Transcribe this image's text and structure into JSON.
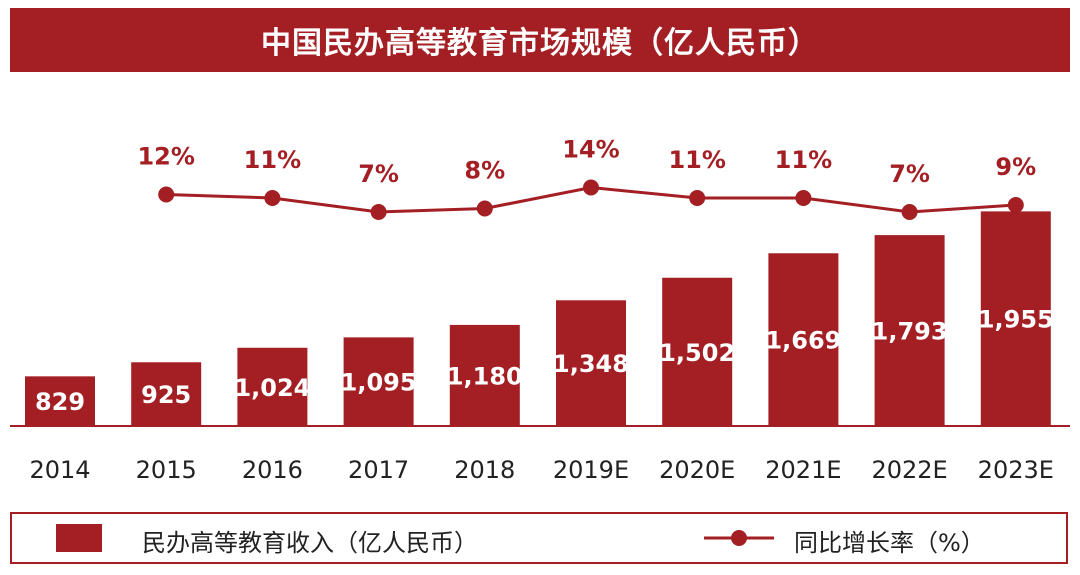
{
  "title": "中国民办高等教育市场规模（亿人民币）",
  "colors": {
    "accent": "#a31f24",
    "bar_label": "#ffffff",
    "axis_text": "#222222"
  },
  "legend": {
    "bar_label": "民办高等教育收入（亿人民币）",
    "line_label": "同比增长率（%）"
  },
  "chart_data": {
    "type": "bar",
    "categories": [
      "2014",
      "2015",
      "2016",
      "2017",
      "2018",
      "2019E",
      "2020E",
      "2021E",
      "2022E",
      "2023E"
    ],
    "series": [
      {
        "name": "民办高等教育收入（亿人民币）",
        "type": "bar",
        "values": [
          829,
          925,
          1024,
          1095,
          1180,
          1348,
          1502,
          1669,
          1793,
          1955
        ],
        "labels": [
          "829",
          "925",
          "1,024",
          "1,095",
          "1,180",
          "1,348",
          "1,502",
          "1,669",
          "1,793",
          "1,955"
        ]
      },
      {
        "name": "同比增长率（%）",
        "type": "line",
        "x": [
          "2015",
          "2016",
          "2017",
          "2018",
          "2019E",
          "2020E",
          "2021E",
          "2022E",
          "2023E"
        ],
        "values": [
          12,
          11,
          7,
          8,
          14,
          11,
          11,
          7,
          9
        ],
        "labels": [
          "12%",
          "11%",
          "7%",
          "8%",
          "14%",
          "11%",
          "11%",
          "7%",
          "9%"
        ]
      }
    ],
    "title": "中国民办高等教育市场规模（亿人民币）",
    "grid": false,
    "legend_position": "bottom"
  }
}
